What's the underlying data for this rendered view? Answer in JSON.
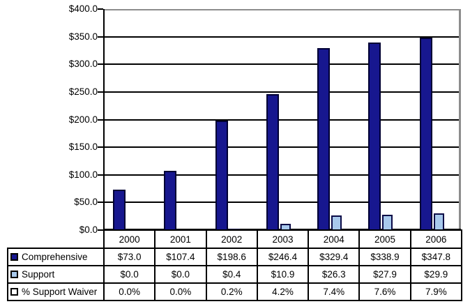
{
  "chart_data": {
    "type": "bar",
    "title": "",
    "xlabel": "",
    "ylabel": "",
    "categories": [
      "2000",
      "2001",
      "2002",
      "2003",
      "2004",
      "2005",
      "2006"
    ],
    "series": [
      {
        "name": "Comprehensive",
        "values": [
          73.0,
          107.4,
          198.6,
          246.4,
          329.4,
          338.9,
          347.8
        ],
        "display_labels": [
          "$73.0",
          "$107.4",
          "$198.6",
          "$246.4",
          "$329.4",
          "$338.9",
          "$347.8"
        ],
        "fill_color": "#17178F",
        "border_color": "#000033",
        "plotted_as_bars": true
      },
      {
        "name": "Support",
        "values": [
          0.0,
          0.0,
          0.4,
          10.9,
          26.3,
          27.9,
          29.9
        ],
        "display_labels": [
          "$0.0",
          "$0.0",
          "$0.4",
          "$10.9",
          "$26.3",
          "$27.9",
          "$29.9"
        ],
        "fill_color": "#A8C9EC",
        "border_color": "#0A0A46",
        "plotted_as_bars": true
      },
      {
        "name": "% Support Waiver",
        "values": [
          0.0,
          0.0,
          0.2,
          4.2,
          7.4,
          7.6,
          7.9
        ],
        "display_labels": [
          "0.0%",
          "0.0%",
          "0.2%",
          "4.2%",
          "7.4%",
          "7.6%",
          "7.9%"
        ],
        "fill_color": "#FFFFFF",
        "border_color": "#000000",
        "plotted_as_bars": false
      }
    ],
    "ylim": [
      0,
      400
    ],
    "y_tick_step": 50,
    "y_tick_labels_top_to_bottom": [
      "$400.0",
      "$350.0",
      "$300.0",
      "$250.0",
      "$200.0",
      "$150.0",
      "$100.0",
      "$50.0",
      "$0.0"
    ],
    "grid": true,
    "legend_position": "data-table-row-labels"
  },
  "colors": {
    "background": "#FFFFFF",
    "gridline": "#000000",
    "plot_border_gray": "#8C8C8C",
    "axis": "#000000",
    "table_border": "#000000",
    "text": "#000000"
  }
}
